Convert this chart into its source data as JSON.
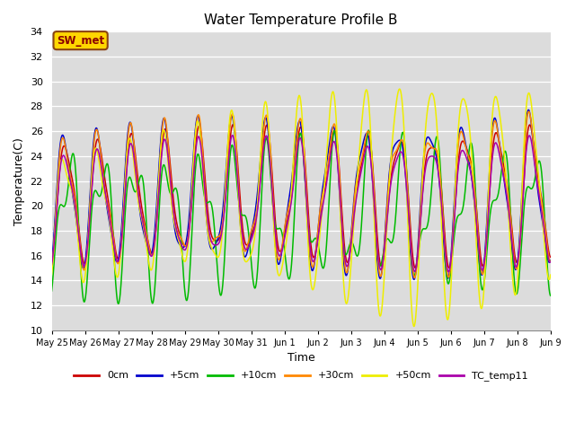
{
  "title": "Water Temperature Profile B",
  "xlabel": "Time",
  "ylabel": "Temperature(C)",
  "ylim": [
    10,
    34
  ],
  "annotation_text": "SW_met",
  "annotation_color": "#8B0000",
  "annotation_bg": "#FFD700",
  "annotation_border": "#8B4513",
  "bg_color": "#DCDCDC",
  "fig_color": "#FFFFFF",
  "legend": [
    "0cm",
    "+5cm",
    "+10cm",
    "+30cm",
    "+50cm",
    "TC_temp11"
  ],
  "line_colors": [
    "#CC0000",
    "#0000CC",
    "#00BB00",
    "#FF8800",
    "#EEEE00",
    "#AA00AA"
  ],
  "tick_labels": [
    "May 25",
    "May 26",
    "May 27",
    "May 28",
    "May 29",
    "May 30",
    "May 31",
    "Jun 1",
    "Jun 2",
    "Jun 3",
    "Jun 4",
    "Jun 5",
    "Jun 6",
    "Jun 7",
    "Jun 8",
    "Jun 9"
  ],
  "yticks": [
    10,
    12,
    14,
    16,
    18,
    20,
    22,
    24,
    26,
    28,
    30,
    32,
    34
  ]
}
